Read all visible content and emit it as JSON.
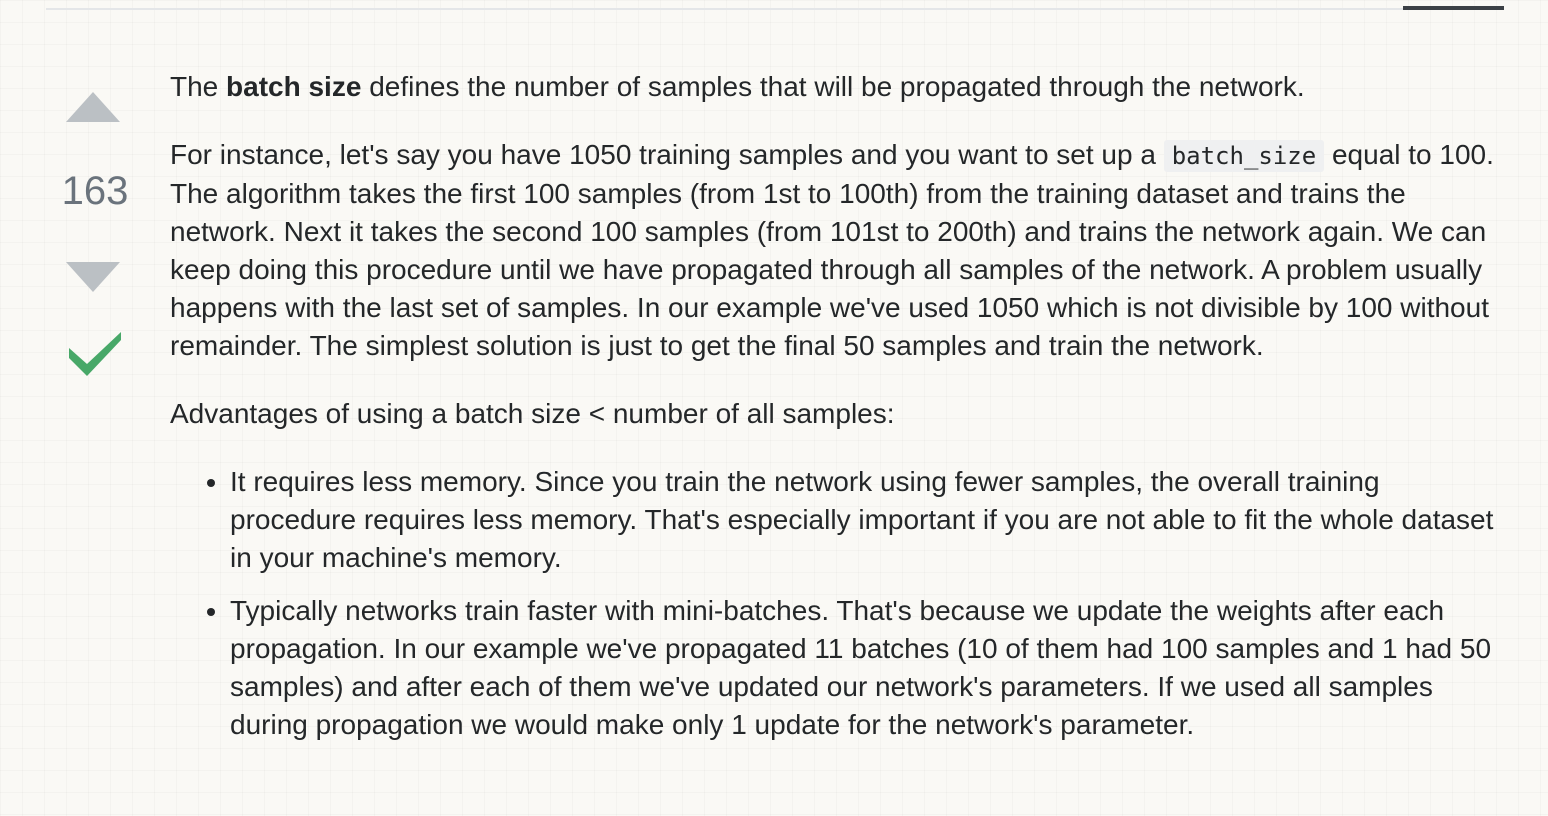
{
  "vote": {
    "count": "163"
  },
  "answer": {
    "p1_before": "The ",
    "p1_bold": "batch size",
    "p1_after": " defines the number of samples that will be propagated through the network.",
    "p2_before": "For instance, let's say you have 1050 training samples and you want to set up a ",
    "p2_code": "batch_size",
    "p2_after": " equal to 100. The algorithm takes the first 100 samples (from 1st to 100th) from the training dataset and trains the network. Next it takes the second 100 samples (from 101st to 200th) and trains the network again. We can keep doing this procedure until we have propagated through all samples of the network. A problem usually happens with the last set of samples. In our example we've used 1050 which is not divisible by 100 without remainder. The simplest solution is just to get the final 50 samples and train the network.",
    "p3": "Advantages of using a batch size < number of all samples:",
    "bullets": [
      "It requires less memory. Since you train the network using fewer samples, the overall training procedure requires less memory. That's especially important if you are not able to fit the whole dataset in your machine's memory.",
      "Typically networks train faster with mini-batches. That's because we update the weights after each propagation. In our example we've propagated 11 batches (10 of them had 100 samples and 1 had 50 samples) and after each of them we've updated our network's parameters. If we used all samples during propagation we would make only 1 update for the network's parameter."
    ]
  },
  "colors": {
    "accepted": "#48a868",
    "vote_arrow": "#bbc0c4",
    "vote_count": "#6a737c"
  },
  "icons": {
    "upvote": "triangle-up-icon",
    "downvote": "triangle-down-icon",
    "accepted": "checkmark-icon"
  }
}
